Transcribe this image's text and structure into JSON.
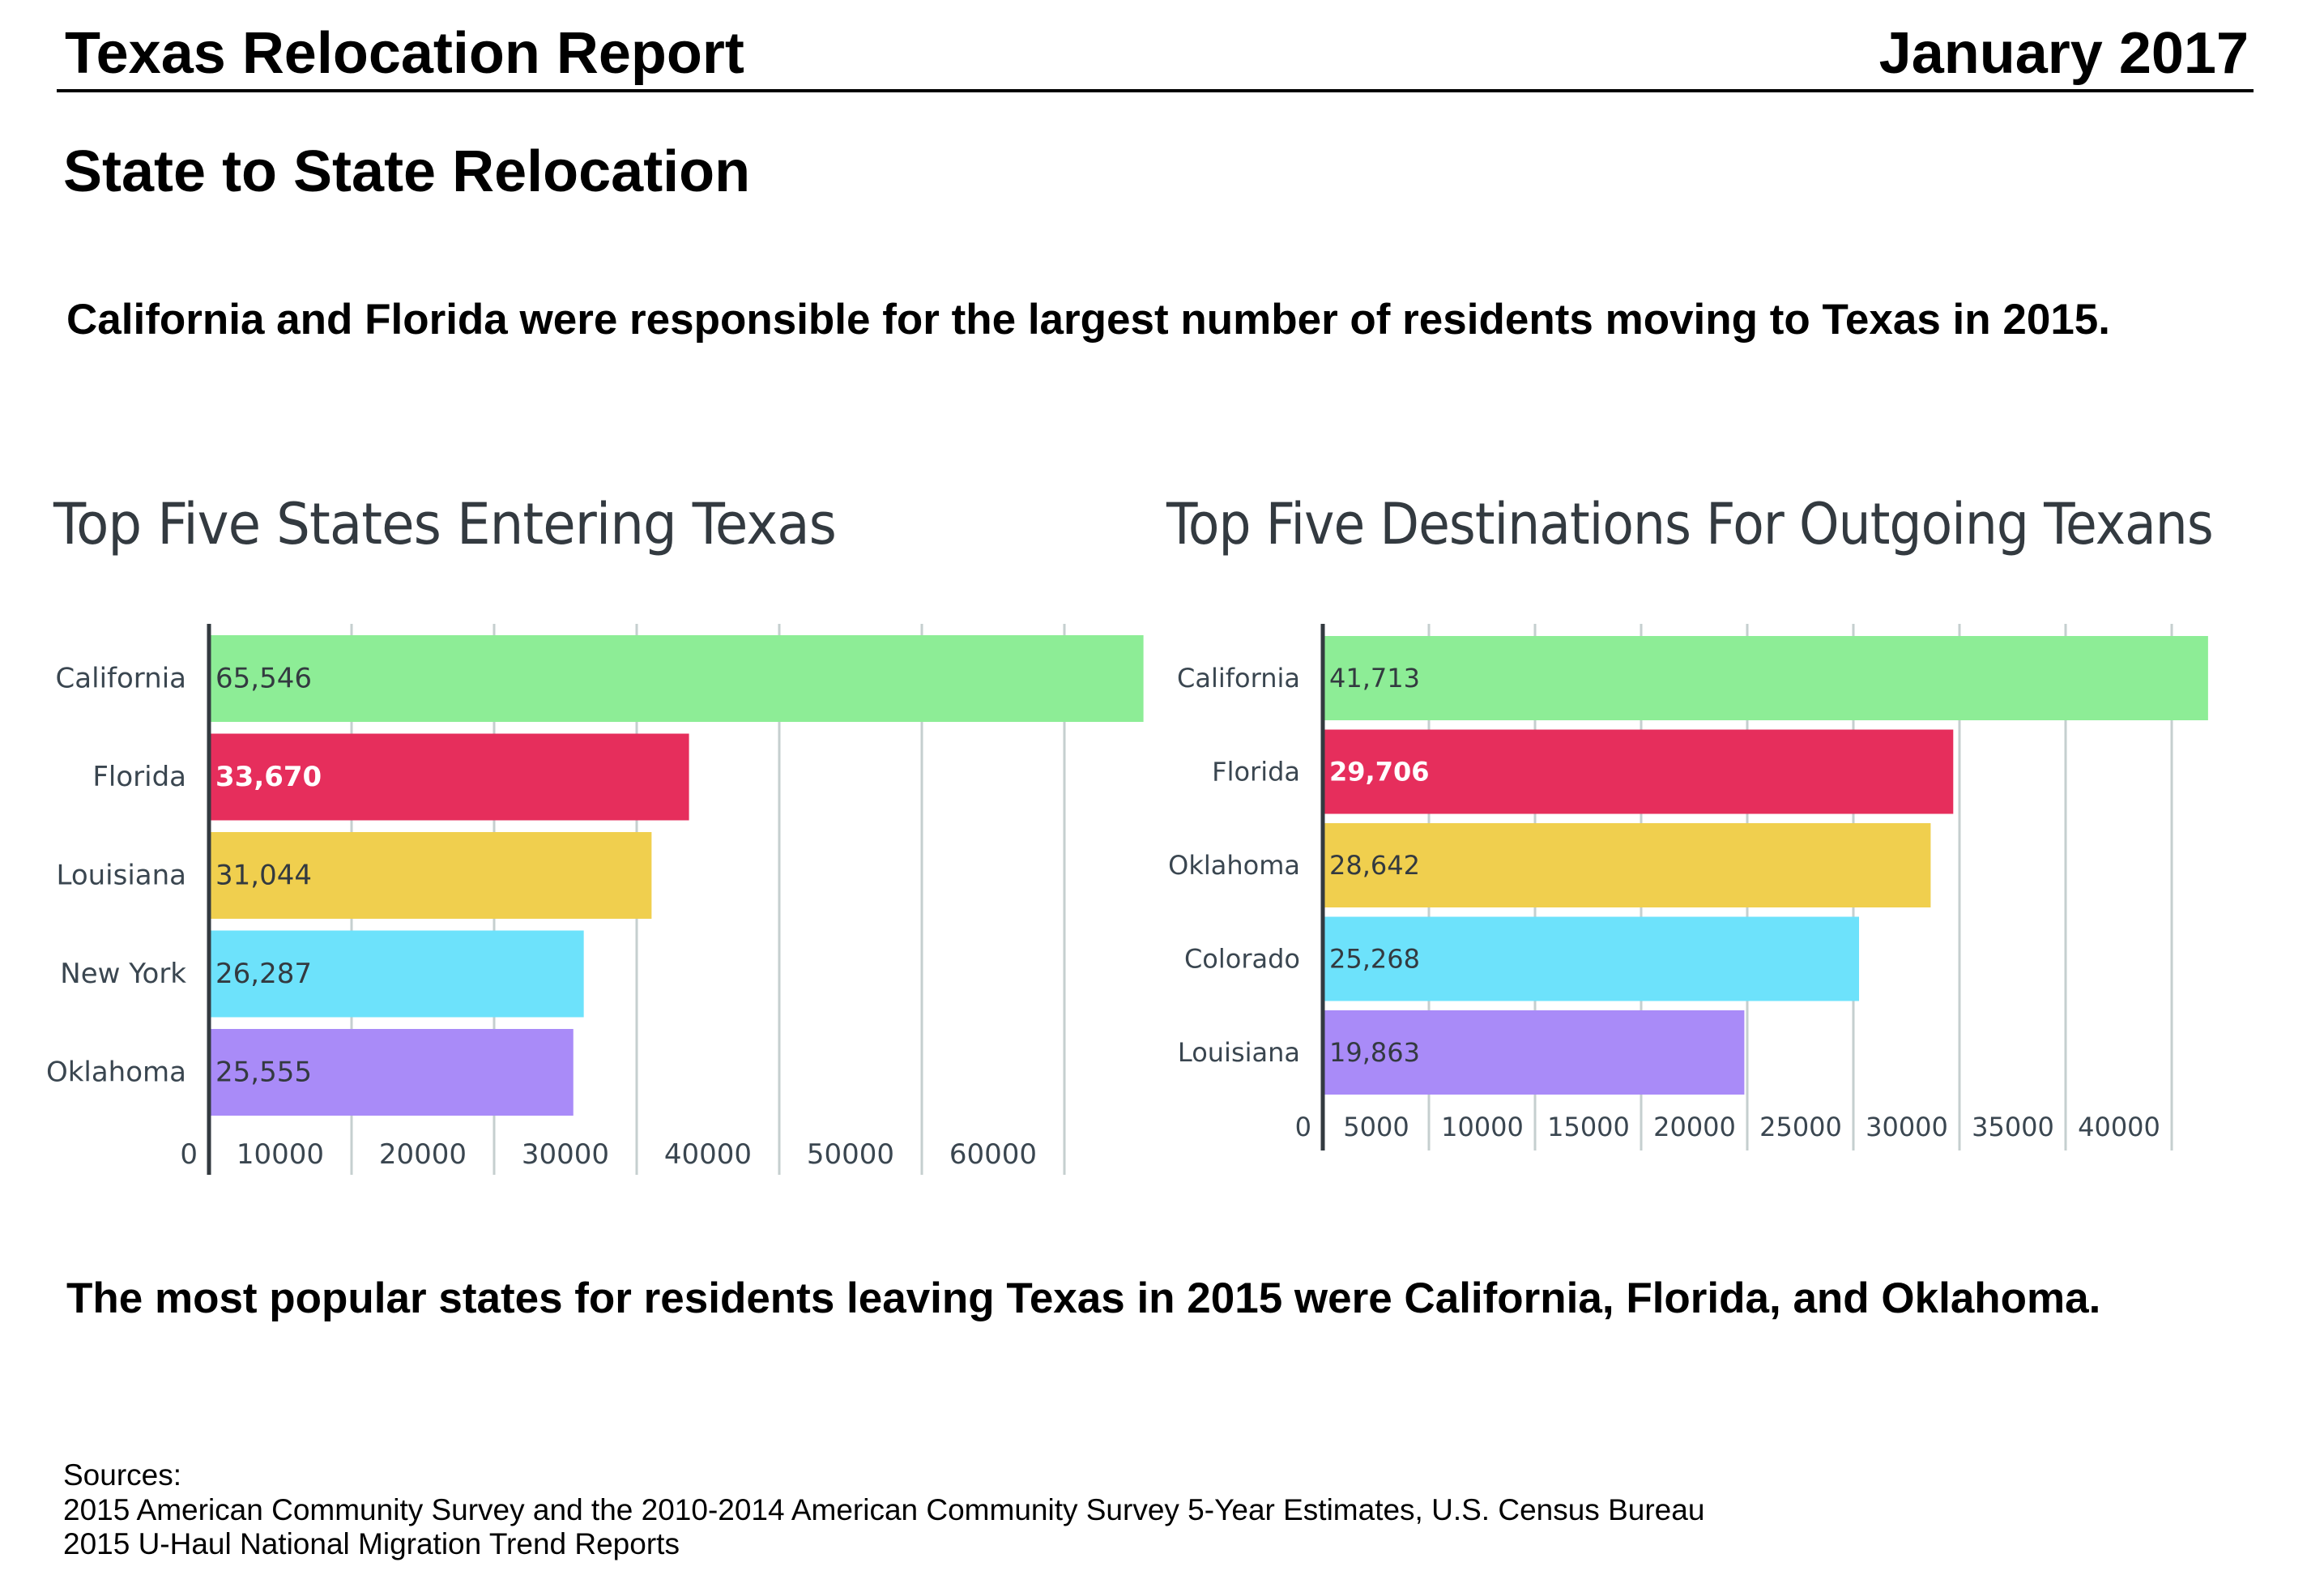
{
  "header": {
    "title": "Texas Relocation Report",
    "date": "January 2017"
  },
  "section_title": "State to State Relocation",
  "paragraphs": [
    "California and Florida were responsible for the largest number of residents moving to Texas in 2015.",
    "The most popular states for residents leaving Texas in 2015 were California, Florida, and Oklahoma."
  ],
  "sources": {
    "label": "Sources:",
    "items": [
      "2015 American Community Survey and the 2010-2014 American Community Survey 5-Year Estimates, U.S. Census Bureau",
      "2015 U-Haul National Migration Trend Reports"
    ]
  },
  "colors": {
    "green": "#8ded96",
    "red": "#e62e5c",
    "yellow": "#f0cf4e",
    "cyan": "#6de2fb",
    "purple": "#a98bf8",
    "grid": "#c5cfcf",
    "axis": "#333a40",
    "label": "#3a4650"
  },
  "chart_data": [
    {
      "type": "bar",
      "orientation": "horizontal",
      "title": "Top Five States Entering Texas",
      "categories": [
        "California",
        "Florida",
        "Louisiana",
        "New York",
        "Oklahoma"
      ],
      "values": [
        65546,
        33670,
        31044,
        26287,
        25555
      ],
      "value_labels": [
        "65,546",
        "33,670",
        "31,044",
        "26,287",
        "25,555"
      ],
      "bar_colors": [
        "#8ded96",
        "#e62e5c",
        "#f0cf4e",
        "#6de2fb",
        "#a98bf8"
      ],
      "label_colors": [
        "#333a40",
        "#ffffff",
        "#333a40",
        "#333a40",
        "#333a40"
      ],
      "xticks": [
        0,
        10000,
        20000,
        30000,
        40000,
        50000,
        60000
      ],
      "xtick_labels": [
        "0",
        "10000",
        "20000",
        "30000",
        "40000",
        "50000",
        "60000"
      ],
      "xlim": [
        0,
        66000
      ],
      "xlabel": "",
      "ylabel": "",
      "grid": true,
      "legend": "none"
    },
    {
      "type": "bar",
      "orientation": "horizontal",
      "title": "Top Five Destinations For Outgoing Texans",
      "categories": [
        "California",
        "Florida",
        "Oklahoma",
        "Colorado",
        "Louisiana"
      ],
      "values": [
        41713,
        29706,
        28642,
        25268,
        19863
      ],
      "value_labels": [
        "41,713",
        "29,706",
        "28,642",
        "25,268",
        "19,863"
      ],
      "bar_colors": [
        "#8ded96",
        "#e62e5c",
        "#f0cf4e",
        "#6de2fb",
        "#a98bf8"
      ],
      "label_colors": [
        "#333a40",
        "#ffffff",
        "#333a40",
        "#333a40",
        "#333a40"
      ],
      "xticks": [
        0,
        5000,
        10000,
        15000,
        20000,
        25000,
        30000,
        35000,
        40000
      ],
      "xtick_labels": [
        "0",
        "5000",
        "10000",
        "15000",
        "20000",
        "25000",
        "30000",
        "35000",
        "40000"
      ],
      "xlim": [
        0,
        42000
      ],
      "xlabel": "",
      "ylabel": "",
      "grid": true,
      "legend": "none"
    }
  ]
}
